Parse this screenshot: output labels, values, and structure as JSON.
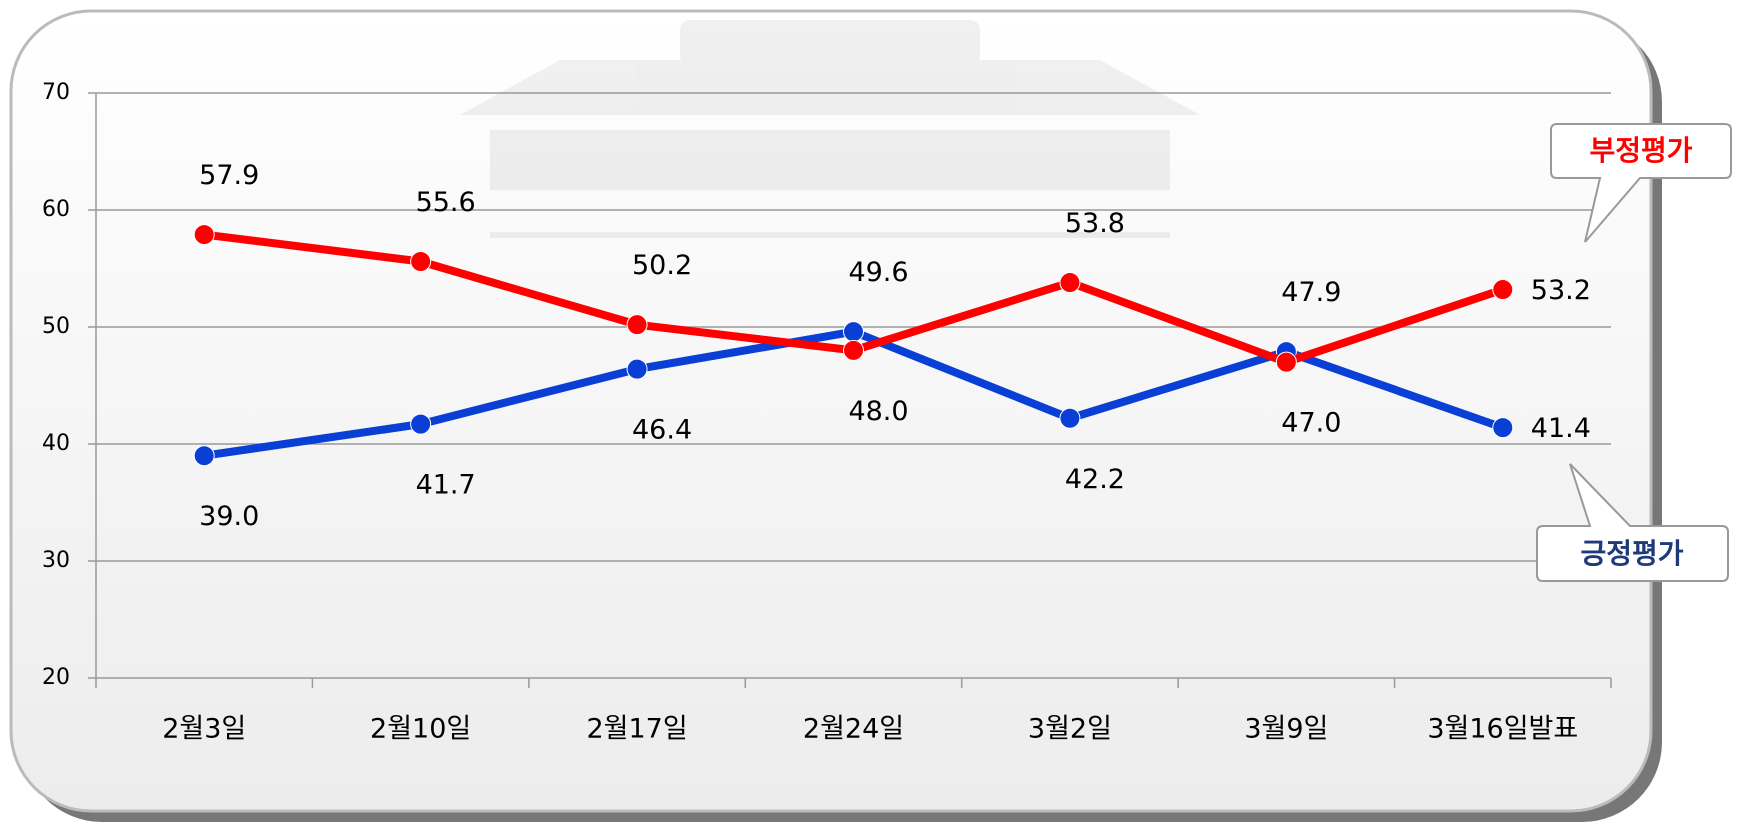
{
  "chart_data": {
    "type": "line",
    "categories": [
      "2월3일",
      "2월10일",
      "2월17일",
      "2월24일",
      "3월2일",
      "3월9일",
      "3월16일발표"
    ],
    "series": [
      {
        "name": "긍정평가",
        "color": "#0a3fd6",
        "values": [
          39.0,
          41.7,
          46.4,
          49.6,
          42.2,
          47.9,
          41.4
        ],
        "value_labels": [
          "39.0",
          "41.7",
          "46.4",
          "49.6",
          "42.2",
          "47.9",
          "41.4"
        ]
      },
      {
        "name": "부정평가",
        "color": "#ff0000",
        "values": [
          57.9,
          55.6,
          50.2,
          48.0,
          53.8,
          47.0,
          53.2
        ],
        "value_labels": [
          "57.9",
          "55.6",
          "50.2",
          "48.0",
          "53.8",
          "47.0",
          "53.2"
        ]
      }
    ],
    "ylim": [
      20,
      70
    ],
    "yticks": [
      20,
      30,
      40,
      50,
      60,
      70
    ],
    "grid": true
  }
}
